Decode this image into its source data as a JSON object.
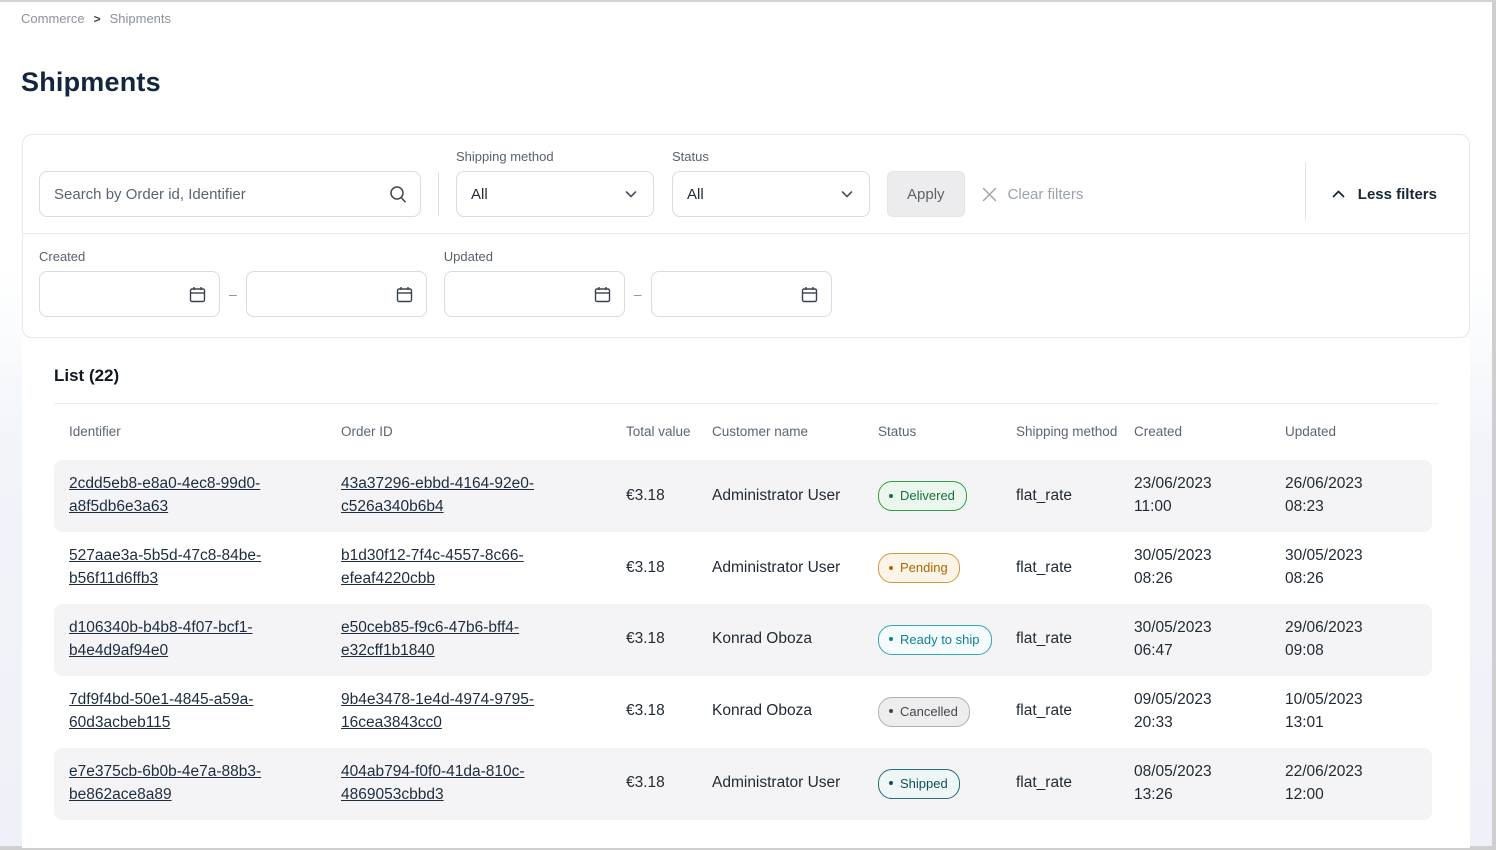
{
  "breadcrumb": {
    "items": [
      "Commerce",
      "Shipments"
    ],
    "separator": ">"
  },
  "page": {
    "title": "Shipments"
  },
  "filters": {
    "search": {
      "placeholder": "Search by Order id, Identifier",
      "icon": "search-icon"
    },
    "shipping_method": {
      "label": "Shipping method",
      "value": "All",
      "icon": "chevron-down-icon"
    },
    "status": {
      "label": "Status",
      "value": "All",
      "icon": "chevron-down-icon"
    },
    "apply_label": "Apply",
    "clear_label": "Clear filters",
    "clear_icon": "x-icon",
    "toggle_label": "Less filters",
    "toggle_icon": "chevron-up-icon",
    "created": {
      "label": "Created",
      "from": "",
      "to": "",
      "icon": "calendar-icon"
    },
    "updated": {
      "label": "Updated",
      "from": "",
      "to": "",
      "icon": "calendar-icon"
    },
    "range_separator": "–"
  },
  "list": {
    "heading": "List (22)",
    "columns": [
      "Identifier",
      "Order ID",
      "Total value",
      "Customer name",
      "Status",
      "Shipping method",
      "Created",
      "Updated"
    ],
    "status_styles": {
      "Delivered": {
        "fg": "#177239",
        "border": "#2f9e44",
        "bg": "#ebf7ee"
      },
      "Pending": {
        "fg": "#ad6800",
        "border": "#d4973f",
        "bg": "#fcf4e6"
      },
      "Ready to ship": {
        "fg": "#12818e",
        "border": "#3aa4ae",
        "bg": "#f3fbfc"
      },
      "Cancelled": {
        "fg": "#40464d",
        "border": "#aab0b6",
        "bg": "#ededee"
      },
      "Shipped": {
        "fg": "#124e57",
        "border": "#2b6b73",
        "bg": "#eef6f6"
      }
    },
    "rows": [
      {
        "identifier": "2cdd5eb8-e8a0-4ec8-99d0-a8f5db6e3a63",
        "order_id": "43a37296-ebbd-4164-92e0-c526a340b6b4",
        "total_value": "€3.18",
        "customer_name": "Administrator User",
        "status": "Delivered",
        "shipping_method": "flat_rate",
        "created": "23/06/2023 11:00",
        "updated": "26/06/2023 08:23"
      },
      {
        "identifier": "527aae3a-5b5d-47c8-84be-b56f11d6ffb3",
        "order_id": "b1d30f12-7f4c-4557-8c66-efeaf4220cbb",
        "total_value": "€3.18",
        "customer_name": "Administrator User",
        "status": "Pending",
        "shipping_method": "flat_rate",
        "created": "30/05/2023 08:26",
        "updated": "30/05/2023 08:26"
      },
      {
        "identifier": "d106340b-b4b8-4f07-bcf1-b4e4d9af94e0",
        "order_id": "e50ceb85-f9c6-47b6-bff4-e32cff1b1840",
        "total_value": "€3.18",
        "customer_name": "Konrad Oboza",
        "status": "Ready to ship",
        "shipping_method": "flat_rate",
        "created": "30/05/2023 06:47",
        "updated": "29/06/2023 09:08"
      },
      {
        "identifier": "7df9f4bd-50e1-4845-a59a-60d3acbeb115",
        "order_id": "9b4e3478-1e4d-4974-9795-16cea3843cc0",
        "total_value": "€3.18",
        "customer_name": "Konrad Oboza",
        "status": "Cancelled",
        "shipping_method": "flat_rate",
        "created": "09/05/2023 20:33",
        "updated": "10/05/2023 13:01"
      },
      {
        "identifier": "e7e375cb-6b0b-4e7a-88b3-be862ace8a89",
        "order_id": "404ab794-f0f0-41da-810c-4869053cbbd3",
        "total_value": "€3.18",
        "customer_name": "Administrator User",
        "status": "Shipped",
        "shipping_method": "flat_rate",
        "created": "08/05/2023 13:26",
        "updated": "22/06/2023 12:00"
      }
    ]
  }
}
